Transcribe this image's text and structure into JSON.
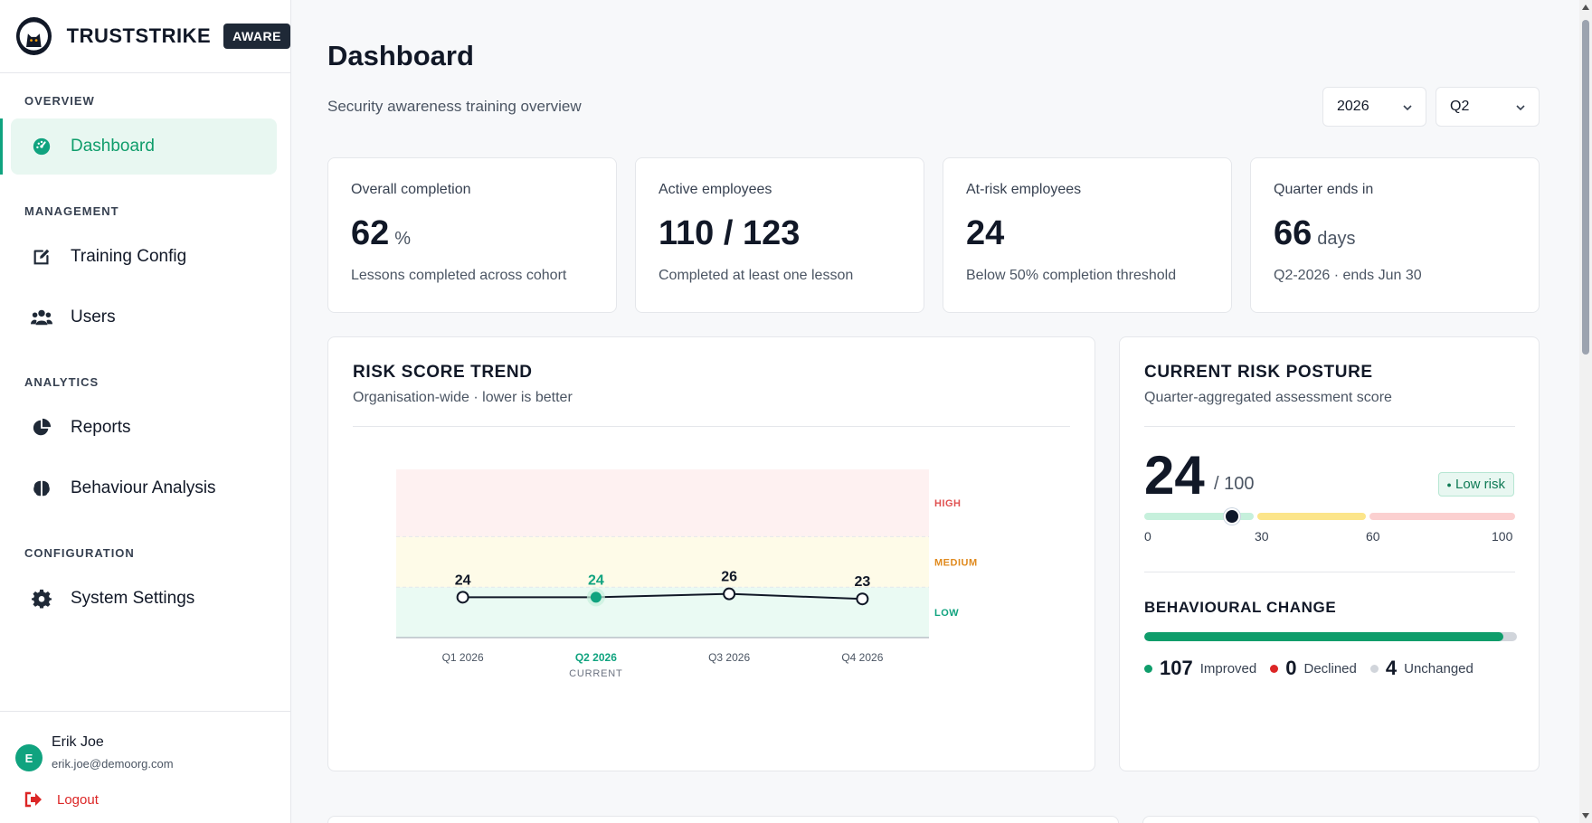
{
  "brand": {
    "name": "TRUSTSTRIKE",
    "badge": "AWARE"
  },
  "sidebar": {
    "sections": [
      {
        "label": "OVERVIEW"
      },
      {
        "label": "MANAGEMENT"
      },
      {
        "label": "ANALYTICS"
      },
      {
        "label": "CONFIGURATION"
      }
    ],
    "items": [
      {
        "label": "Dashboard",
        "icon": "gauge-icon",
        "active": true
      },
      {
        "label": "Training Config",
        "icon": "edit-icon"
      },
      {
        "label": "Users",
        "icon": "users-icon"
      },
      {
        "label": "Reports",
        "icon": "pie-chart-icon"
      },
      {
        "label": "Behaviour Analysis",
        "icon": "brain-icon"
      },
      {
        "label": "System Settings",
        "icon": "gear-icon"
      }
    ]
  },
  "user": {
    "initial": "E",
    "name": "Erik Joe",
    "email": "erik.joe@demoorg.com",
    "logout_label": "Logout"
  },
  "header": {
    "title": "Dashboard",
    "subtitle": "Security awareness training overview",
    "year_select": "2026",
    "quarter_select": "Q2"
  },
  "stats": [
    {
      "label": "Overall completion",
      "value": "62",
      "unit": "%",
      "desc": "Lessons completed across cohort"
    },
    {
      "label": "Active employees",
      "value": "110 / 123",
      "unit": "",
      "desc": "Completed at least one lesson"
    },
    {
      "label": "At-risk employees",
      "value": "24",
      "unit": "",
      "desc": "Below 50% completion threshold"
    },
    {
      "label": "Quarter ends in",
      "value": "66",
      "unit": "days",
      "desc": "Q2-2026 · ends Jun 30"
    }
  ],
  "trend": {
    "title": "RISK SCORE TREND",
    "subtitle": "Organisation-wide · lower is better",
    "current_label": "CURRENT"
  },
  "chart_data": {
    "type": "line",
    "title": "RISK SCORE TREND",
    "categories": [
      "Q1 2026",
      "Q2 2026",
      "Q3 2026",
      "Q4 2026"
    ],
    "series": [
      {
        "values": [
          24,
          24,
          26,
          23
        ]
      }
    ],
    "ylim": [
      0,
      100
    ],
    "current_index": 1,
    "bands": [
      {
        "label": "LOW",
        "from": 0,
        "to": 30,
        "color": "#eafaf3",
        "label_color": "#10a37f"
      },
      {
        "label": "MEDIUM",
        "from": 30,
        "to": 60,
        "color": "#fefbe8",
        "label_color": "#e08a1e"
      },
      {
        "label": "HIGH",
        "from": 60,
        "to": 100,
        "color": "#fef1f1",
        "label_color": "#e05252"
      }
    ],
    "grid": false
  },
  "posture": {
    "title": "CURRENT RISK POSTURE",
    "subtitle": "Quarter-aggregated assessment score",
    "score": "24",
    "max_label": "/ 100",
    "score_value": 24,
    "risk_label": "Low risk",
    "ticks": [
      "0",
      "30",
      "60",
      "100"
    ]
  },
  "behaviour": {
    "title": "BEHAVIOURAL CHANGE",
    "improved": "107",
    "improved_label": "Improved",
    "declined": "0",
    "declined_label": "Declined",
    "unchanged": "4",
    "unchanged_label": "Unchanged",
    "improved_fraction": 0.964
  },
  "colors": {
    "accent": "#10a37f",
    "danger": "#dc2626",
    "text": "#111827"
  }
}
